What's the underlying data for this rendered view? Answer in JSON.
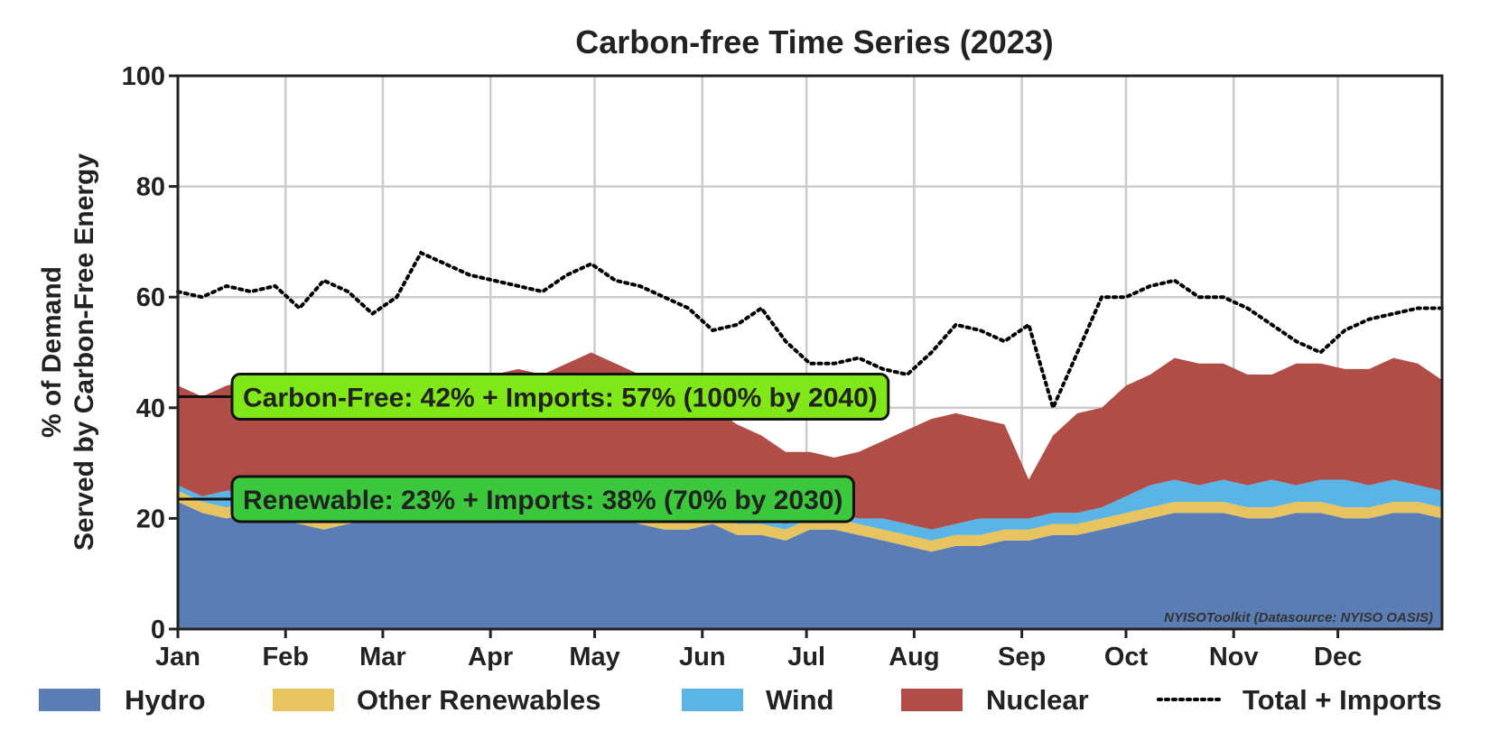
{
  "chart_data": {
    "type": "area",
    "title": "Carbon-free Time Series (2023)",
    "xlabel": "",
    "ylabel_line1": "% of Demand",
    "ylabel_line2": "Served by Carbon-Free Energy",
    "ylim": [
      0,
      100
    ],
    "xlim_days": [
      0,
      364
    ],
    "yticks": [
      0,
      20,
      40,
      60,
      80,
      100
    ],
    "month_labels": [
      "Jan",
      "Feb",
      "Mar",
      "Apr",
      "May",
      "Jun",
      "Jul",
      "Aug",
      "Sep",
      "Oct",
      "Nov",
      "Dec"
    ],
    "month_start_days": [
      0,
      31,
      59,
      90,
      120,
      151,
      181,
      212,
      243,
      273,
      304,
      334
    ],
    "grid": true,
    "legend_position": "bottom",
    "anchor_day_step": 7,
    "series": [
      {
        "name": "Hydro",
        "color": "#5a7db5",
        "style": "stacked-area",
        "values": [
          23,
          21,
          20,
          21,
          20,
          19,
          18,
          19,
          20,
          20,
          21,
          21,
          20,
          20,
          21,
          20,
          20,
          21,
          20,
          19,
          18,
          18,
          19,
          17,
          17,
          16,
          18,
          18,
          17,
          16,
          15,
          14,
          15,
          15,
          16,
          16,
          17,
          17,
          18,
          19,
          20,
          21,
          21,
          21,
          20,
          20,
          21,
          21,
          20,
          20,
          21,
          21,
          20
        ]
      },
      {
        "name": "Other Renewables",
        "color": "#e8c460",
        "style": "stacked-area",
        "values": [
          2,
          2,
          2,
          2,
          2,
          2,
          2,
          2,
          2,
          2,
          2,
          2,
          2,
          2,
          2,
          2,
          2,
          2,
          2,
          2,
          2,
          2,
          2,
          2,
          2,
          2,
          2,
          2,
          2,
          2,
          2,
          2,
          2,
          2,
          2,
          2,
          2,
          2,
          2,
          2,
          2,
          2,
          2,
          2,
          2,
          2,
          2,
          2,
          2,
          2,
          2,
          2,
          2
        ]
      },
      {
        "name": "Wind",
        "color": "#5ab4e5",
        "style": "stacked-area",
        "values": [
          1,
          1,
          3,
          2,
          4,
          2,
          3,
          2,
          3,
          2,
          2,
          3,
          2,
          4,
          3,
          2,
          2,
          2,
          1,
          1,
          1,
          1,
          1,
          1,
          1,
          1,
          1,
          1,
          1,
          2,
          2,
          2,
          2,
          3,
          2,
          2,
          2,
          2,
          2,
          3,
          4,
          4,
          3,
          4,
          4,
          5,
          3,
          4,
          5,
          4,
          4,
          3,
          3
        ]
      },
      {
        "name": "Nuclear",
        "color": "#b04d47",
        "style": "stacked-area",
        "values": [
          18,
          18,
          19,
          20,
          20,
          21,
          22,
          21,
          20,
          22,
          19,
          20,
          22,
          20,
          21,
          22,
          24,
          25,
          25,
          24,
          23,
          20,
          18,
          17,
          15,
          13,
          11,
          10,
          12,
          14,
          17,
          20,
          20,
          18,
          17,
          7,
          14,
          18,
          18,
          20,
          20,
          22,
          22,
          21,
          20,
          19,
          22,
          21,
          20,
          21,
          22,
          22,
          20
        ]
      },
      {
        "name": "Total + Imports",
        "color": "#000000",
        "style": "dotted-line",
        "values": [
          61,
          60,
          62,
          61,
          62,
          58,
          63,
          61,
          57,
          60,
          68,
          66,
          64,
          63,
          62,
          61,
          64,
          66,
          63,
          62,
          60,
          58,
          54,
          55,
          58,
          52,
          48,
          48,
          49,
          47,
          46,
          50,
          55,
          54,
          52,
          55,
          40,
          50,
          60,
          60,
          62,
          63,
          60,
          60,
          58,
          55,
          52,
          50,
          54,
          56,
          57,
          58,
          58
        ]
      }
    ],
    "annotations": [
      {
        "text": "Carbon-Free: 42% + Imports: 57% (100% by 2040)",
        "y": 42,
        "fill": "#80e818"
      },
      {
        "text": "Renewable: 23% + Imports: 38% (70% by 2030)",
        "y": 23.5,
        "fill": "#3cc83c"
      }
    ],
    "source_note": "NYISOToolkit (Datasource: NYISO OASIS)"
  }
}
